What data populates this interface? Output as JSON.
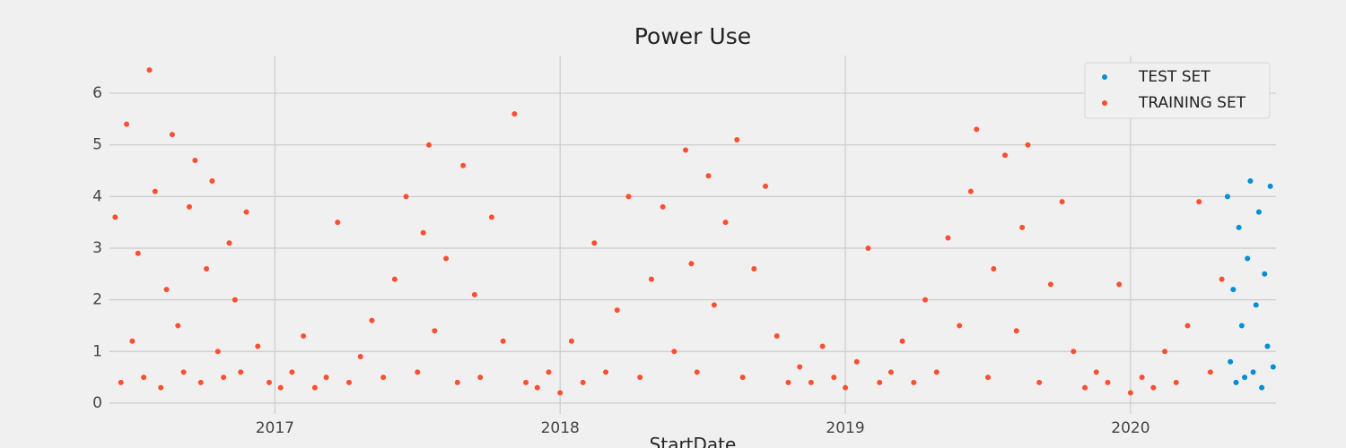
{
  "chart_data": {
    "type": "scatter",
    "title": "Power Use",
    "x_label": "StartDate",
    "xlim": [
      2016.42,
      2020.51
    ],
    "ylim": [
      -0.21,
      6.73
    ],
    "xticks": [
      2017,
      2018,
      2019,
      2020
    ],
    "yticks": [
      0,
      1,
      2,
      3,
      4,
      5,
      6
    ],
    "grid": true,
    "legend": "upper right",
    "series": [
      {
        "name": "TEST SET",
        "color": "#008fd5",
        "x": [
          2020.34,
          2020.35,
          2020.36,
          2020.37,
          2020.38,
          2020.39,
          2020.4,
          2020.41,
          2020.42,
          2020.43,
          2020.44,
          2020.45,
          2020.46,
          2020.47,
          2020.48,
          2020.49,
          2020.5
        ],
        "values": [
          4.0,
          0.8,
          2.2,
          0.4,
          3.4,
          1.5,
          0.5,
          2.8,
          4.3,
          0.6,
          1.9,
          3.7,
          0.3,
          2.5,
          1.1,
          4.2,
          0.7
        ]
      },
      {
        "name": "TRAINING SET",
        "color": "#fc4f30",
        "x": [
          2016.44,
          2016.46,
          2016.48,
          2016.5,
          2016.52,
          2016.54,
          2016.56,
          2016.58,
          2016.6,
          2016.62,
          2016.64,
          2016.66,
          2016.68,
          2016.7,
          2016.72,
          2016.74,
          2016.76,
          2016.78,
          2016.8,
          2016.82,
          2016.84,
          2016.86,
          2016.88,
          2016.9,
          2016.94,
          2016.98,
          2017.02,
          2017.06,
          2017.1,
          2017.14,
          2017.18,
          2017.22,
          2017.26,
          2017.3,
          2017.34,
          2017.38,
          2017.42,
          2017.46,
          2017.5,
          2017.52,
          2017.54,
          2017.56,
          2017.6,
          2017.64,
          2017.66,
          2017.7,
          2017.72,
          2017.76,
          2017.8,
          2017.84,
          2017.88,
          2017.92,
          2017.96,
          2018.0,
          2018.04,
          2018.08,
          2018.12,
          2018.16,
          2018.2,
          2018.24,
          2018.28,
          2018.32,
          2018.36,
          2018.4,
          2018.44,
          2018.46,
          2018.48,
          2018.52,
          2018.54,
          2018.58,
          2018.62,
          2018.64,
          2018.68,
          2018.72,
          2018.76,
          2018.8,
          2018.84,
          2018.88,
          2018.92,
          2018.96,
          2019.0,
          2019.04,
          2019.08,
          2019.12,
          2019.16,
          2019.2,
          2019.24,
          2019.28,
          2019.32,
          2019.36,
          2019.4,
          2019.44,
          2019.46,
          2019.5,
          2019.52,
          2019.56,
          2019.6,
          2019.62,
          2019.64,
          2019.68,
          2019.72,
          2019.76,
          2019.8,
          2019.84,
          2019.88,
          2019.92,
          2019.96,
          2020.0,
          2020.04,
          2020.08,
          2020.12,
          2020.16,
          2020.2,
          2020.24,
          2020.28,
          2020.32
        ],
        "values": [
          3.6,
          0.4,
          5.4,
          1.2,
          2.9,
          0.5,
          6.45,
          4.1,
          0.3,
          2.2,
          5.2,
          1.5,
          0.6,
          3.8,
          4.7,
          0.4,
          2.6,
          4.3,
          1.0,
          0.5,
          3.1,
          2.0,
          0.6,
          3.7,
          1.1,
          0.4,
          0.3,
          0.6,
          1.3,
          0.3,
          0.5,
          3.5,
          0.4,
          0.9,
          1.6,
          0.5,
          2.4,
          4.0,
          0.6,
          3.3,
          5.0,
          1.4,
          2.8,
          0.4,
          4.6,
          2.1,
          0.5,
          3.6,
          1.2,
          5.6,
          0.4,
          0.3,
          0.6,
          0.2,
          1.2,
          0.4,
          3.1,
          0.6,
          1.8,
          4.0,
          0.5,
          2.4,
          3.8,
          1.0,
          4.9,
          2.7,
          0.6,
          4.4,
          1.9,
          3.5,
          5.1,
          0.5,
          2.6,
          4.2,
          1.3,
          0.4,
          0.7,
          0.4,
          1.1,
          0.5,
          0.3,
          0.8,
          3.0,
          0.4,
          0.6,
          1.2,
          0.4,
          2.0,
          0.6,
          3.2,
          1.5,
          4.1,
          5.3,
          0.5,
          2.6,
          4.8,
          1.4,
          3.4,
          5.0,
          0.4,
          2.3,
          3.9,
          1.0,
          0.3,
          0.6,
          0.4,
          2.3,
          0.2,
          0.5,
          0.3,
          1.0,
          0.4,
          1.5,
          3.9,
          0.6,
          2.4
        ]
      }
    ]
  }
}
